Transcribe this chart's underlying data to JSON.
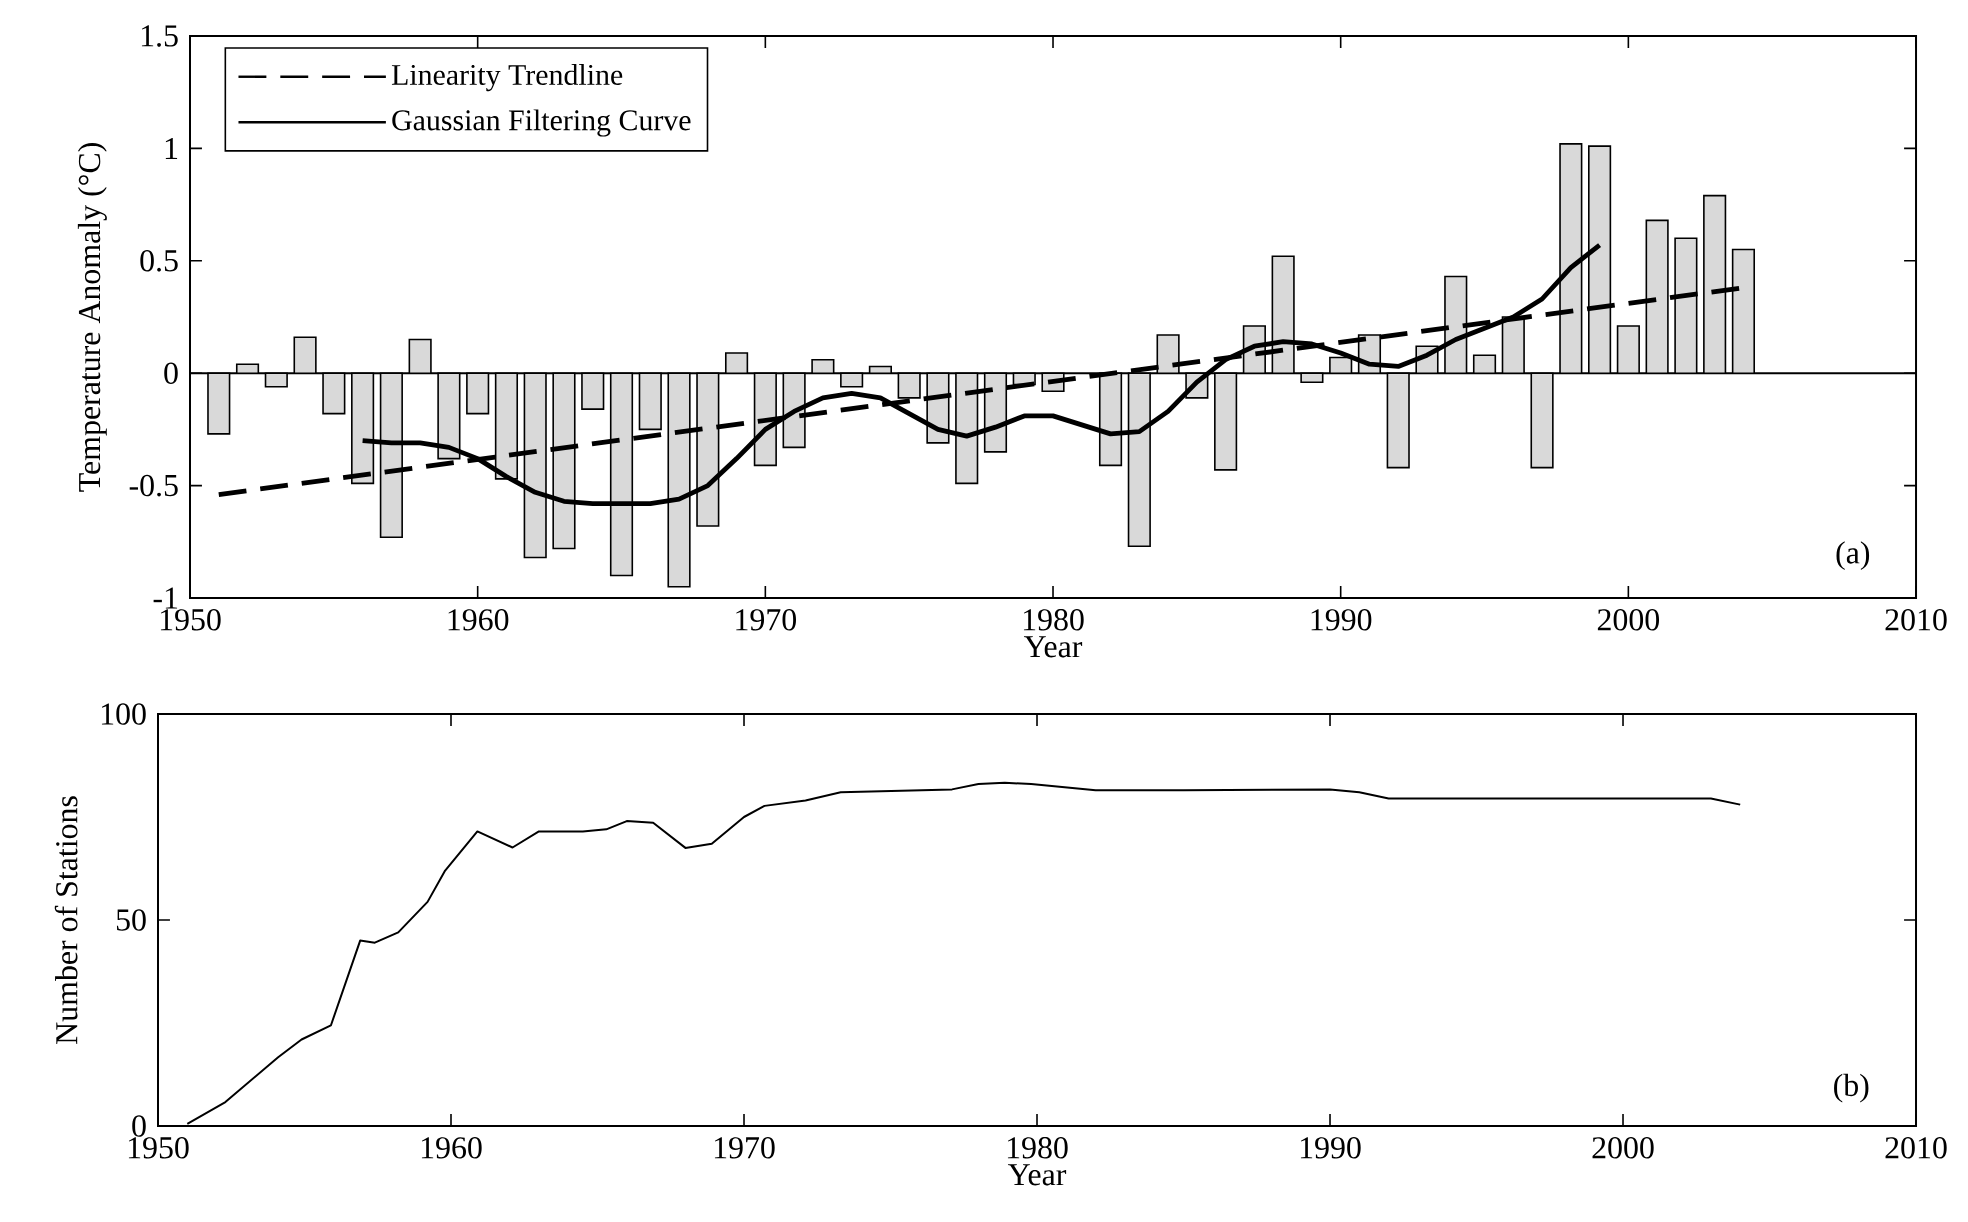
{
  "chart_data": [
    {
      "type": "bar",
      "xlabel": "Year",
      "ylabel": "Temperature Anomaly (°C)",
      "x": [
        1951,
        1952,
        1953,
        1954,
        1955,
        1956,
        1957,
        1958,
        1959,
        1960,
        1961,
        1962,
        1963,
        1964,
        1965,
        1966,
        1967,
        1968,
        1969,
        1970,
        1971,
        1972,
        1973,
        1974,
        1975,
        1976,
        1977,
        1978,
        1979,
        1980,
        1981,
        1982,
        1983,
        1984,
        1985,
        1986,
        1987,
        1988,
        1989,
        1990,
        1991,
        1992,
        1993,
        1994,
        1995,
        1996,
        1997,
        1998,
        1999,
        2000,
        2001,
        2002,
        2003,
        2004
      ],
      "series": [
        {
          "type": "bar",
          "color": "#d9d9d9",
          "values": [
            -0.27,
            0.04,
            -0.06,
            0.16,
            -0.18,
            -0.49,
            -0.73,
            0.15,
            -0.38,
            -0.18,
            -0.47,
            -0.82,
            -0.78,
            -0.16,
            -0.9,
            -0.25,
            -0.95,
            -0.68,
            0.09,
            -0.41,
            -0.33,
            0.06,
            -0.06,
            0.03,
            -0.11,
            -0.31,
            -0.49,
            -0.35,
            -0.05,
            -0.08,
            null,
            -0.41,
            -0.77,
            0.17,
            -0.11,
            -0.43,
            0.21,
            0.52,
            -0.04,
            0.07,
            0.17,
            -0.42,
            0.12,
            0.43,
            0.08,
            0.25,
            -0.42,
            1.02,
            1.01,
            0.21,
            0.68,
            0.6,
            0.79,
            0.55
          ]
        },
        {
          "type": "line",
          "name": "Linearity Trendline",
          "color": "#000000",
          "line_style": "dashed",
          "x": [
            1951,
            2004
          ],
          "values": [
            -0.54,
            0.38
          ]
        },
        {
          "type": "line",
          "name": "Gaussian Filtering Curve",
          "color": "#000000",
          "line_style": "solid",
          "x": [
            1956,
            1957,
            1958,
            1959,
            1960,
            1961,
            1962,
            1963,
            1964,
            1965,
            1966,
            1967,
            1968,
            1969,
            1970,
            1971,
            1972,
            1973,
            1974,
            1975,
            1976,
            1977,
            1978,
            1979,
            1980,
            1981,
            1982,
            1983,
            1984,
            1985,
            1986,
            1987,
            1988,
            1989,
            1990,
            1991,
            1992,
            1993,
            1994,
            1995,
            1996,
            1997,
            1998,
            1999
          ],
          "values": [
            -0.3,
            -0.31,
            -0.31,
            -0.33,
            -0.38,
            -0.46,
            -0.53,
            -0.57,
            -0.58,
            -0.58,
            -0.58,
            -0.56,
            -0.5,
            -0.38,
            -0.25,
            -0.17,
            -0.11,
            -0.09,
            -0.11,
            -0.18,
            -0.25,
            -0.28,
            -0.24,
            -0.19,
            -0.19,
            -0.23,
            -0.27,
            -0.26,
            -0.17,
            -0.04,
            0.06,
            0.12,
            0.14,
            0.13,
            0.09,
            0.04,
            0.03,
            0.08,
            0.15,
            0.2,
            0.25,
            0.33,
            0.47,
            0.57
          ]
        }
      ],
      "xlim": [
        1950,
        2010
      ],
      "xticks": [
        1950,
        1960,
        1970,
        1980,
        1990,
        2000,
        2010
      ],
      "ylim": [
        -1,
        1.5
      ],
      "yticks": [
        -1,
        -0.5,
        0,
        0.5,
        1,
        1.5
      ],
      "ref_lines": [
        {
          "axis": "y",
          "value": 0,
          "color": "#000000"
        }
      ],
      "legend": "top left",
      "marker": "none",
      "annotations": [
        "(a)"
      ]
    },
    {
      "type": "line",
      "xlabel": "Year",
      "ylabel": "Number of Stations",
      "color": "#000000",
      "x": [
        1951,
        1952.3,
        1954.1,
        1954.9,
        1955.9,
        1956.9,
        1957.4,
        1958.2,
        1959.2,
        1959.8,
        1960.9,
        1962.1,
        1963,
        1964.5,
        1965.3,
        1966,
        1966.9,
        1968,
        1968.9,
        1970,
        1970.7,
        1972.1,
        1973.3,
        1977.1,
        1978,
        1978.9,
        1979.8,
        1982,
        1985,
        1990,
        1991,
        1992,
        2000,
        2003,
        2004
      ],
      "values": [
        0.5,
        5.8,
        16.7,
        21,
        24.4,
        45,
        44.5,
        47,
        54.4,
        62,
        71.5,
        67.6,
        71.5,
        71.5,
        72,
        74,
        73.6,
        67.5,
        68.5,
        75,
        77.7,
        79,
        81,
        81.7,
        83,
        83.3,
        83,
        81.5,
        81.5,
        81.7,
        81,
        79.5,
        79.5,
        79.5,
        78
      ],
      "xlim": [
        1950,
        2010
      ],
      "xticks": [
        1950,
        1960,
        1970,
        1980,
        1990,
        2000,
        2010
      ],
      "ylim": [
        0,
        100
      ],
      "yticks": [
        0,
        50,
        100
      ],
      "marker": "none",
      "annotations": [
        "(b)"
      ]
    }
  ]
}
